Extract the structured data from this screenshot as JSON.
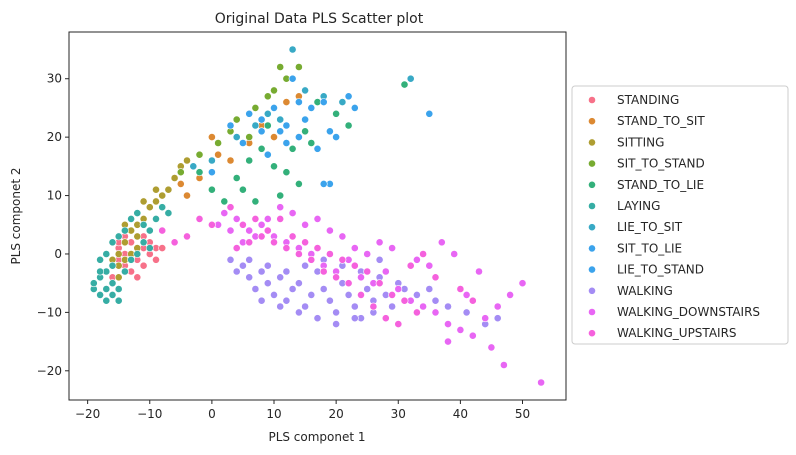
{
  "chart_data": {
    "type": "scatter",
    "title": "Original Data PLS Scatter plot",
    "xlabel": "PLS componet 1",
    "ylabel": "PLS componet 2",
    "xlim": [
      -23,
      57
    ],
    "ylim": [
      -25,
      38
    ],
    "xticks": [
      -20,
      -10,
      0,
      10,
      20,
      30,
      40,
      50
    ],
    "yticks": [
      -20,
      -10,
      0,
      10,
      20,
      30
    ],
    "grid": false,
    "legend_position": "right",
    "series": [
      {
        "name": "STANDING",
        "color": "#f77189",
        "points": [
          [
            -17,
            -3
          ],
          [
            -16,
            -1
          ],
          [
            -15,
            1
          ],
          [
            -14,
            -2
          ],
          [
            -13,
            2
          ],
          [
            -12,
            -1
          ],
          [
            -11,
            1
          ],
          [
            -10,
            0
          ],
          [
            -12,
            3
          ],
          [
            -14,
            0
          ],
          [
            -16,
            -4
          ],
          [
            -13,
            -3
          ],
          [
            -11,
            -2
          ],
          [
            -15,
            -1
          ],
          [
            -12,
            -4
          ],
          [
            -10,
            2
          ],
          [
            -9,
            1
          ],
          [
            -13,
            4
          ],
          [
            -11,
            3
          ],
          [
            -14,
            3
          ],
          [
            -9,
            -1
          ],
          [
            -8,
            1
          ],
          [
            -15,
            2
          ]
        ]
      },
      {
        "name": "STAND_TO_SIT",
        "color": "#dc8932",
        "points": [
          [
            -8,
            8
          ],
          [
            -5,
            12
          ],
          [
            -2,
            13
          ],
          [
            0,
            20
          ],
          [
            1,
            17
          ],
          [
            3,
            16
          ],
          [
            8,
            22
          ],
          [
            12,
            26
          ],
          [
            14,
            27
          ],
          [
            6,
            19
          ],
          [
            -4,
            10
          ],
          [
            10,
            20
          ]
        ]
      },
      {
        "name": "SITTING",
        "color": "#ae9d31",
        "points": [
          [
            -16,
            -1
          ],
          [
            -15,
            0
          ],
          [
            -14,
            -3
          ],
          [
            -13,
            -1
          ],
          [
            -12,
            1
          ],
          [
            -14,
            2
          ],
          [
            -15,
            -4
          ],
          [
            -13,
            4
          ],
          [
            -11,
            6
          ],
          [
            -10,
            8
          ],
          [
            -9,
            9
          ],
          [
            -8,
            10
          ],
          [
            -12,
            5
          ],
          [
            -16,
            2
          ],
          [
            -14,
            5
          ],
          [
            -11,
            9
          ],
          [
            -9,
            11
          ],
          [
            -7,
            11
          ],
          [
            -6,
            13
          ],
          [
            -5,
            15
          ],
          [
            -4,
            16
          ],
          [
            -14,
            -1
          ],
          [
            -13,
            0
          ],
          [
            -15,
            -2
          ],
          [
            -12,
            3
          ]
        ]
      },
      {
        "name": "SIT_TO_STAND",
        "color": "#77ab31",
        "points": [
          [
            -5,
            14
          ],
          [
            -2,
            17
          ],
          [
            1,
            19
          ],
          [
            4,
            23
          ],
          [
            7,
            25
          ],
          [
            9,
            27
          ],
          [
            11,
            32
          ],
          [
            12,
            30
          ],
          [
            14,
            32
          ],
          [
            3,
            21
          ],
          [
            6,
            20
          ],
          [
            10,
            28
          ]
        ]
      },
      {
        "name": "STAND_TO_LIE",
        "color": "#33b07a",
        "points": [
          [
            -2,
            14
          ],
          [
            0,
            11
          ],
          [
            2,
            9
          ],
          [
            4,
            13
          ],
          [
            6,
            16
          ],
          [
            8,
            18
          ],
          [
            10,
            15
          ],
          [
            12,
            14
          ],
          [
            14,
            12
          ],
          [
            16,
            19
          ],
          [
            20,
            24
          ],
          [
            22,
            22
          ],
          [
            18,
            27
          ],
          [
            15,
            21
          ],
          [
            13,
            18
          ],
          [
            9,
            22
          ],
          [
            5,
            11
          ],
          [
            7,
            9
          ],
          [
            11,
            10
          ],
          [
            17,
            26
          ],
          [
            31,
            29
          ]
        ]
      },
      {
        "name": "LAYING",
        "color": "#36ada4",
        "points": [
          [
            -19,
            -6
          ],
          [
            -18,
            -4
          ],
          [
            -17,
            -3
          ],
          [
            -16,
            -5
          ],
          [
            -18,
            -7
          ],
          [
            -17,
            -8
          ],
          [
            -16,
            -2
          ],
          [
            -15,
            -6
          ],
          [
            -18,
            -1
          ],
          [
            -17,
            0
          ],
          [
            -16,
            2
          ],
          [
            -15,
            3
          ],
          [
            -14,
            4
          ],
          [
            -13,
            6
          ],
          [
            -12,
            7
          ],
          [
            -11,
            5
          ],
          [
            -10,
            4
          ],
          [
            -9,
            6
          ],
          [
            -8,
            8
          ],
          [
            -7,
            7
          ],
          [
            -17,
            -6
          ],
          [
            -18,
            -3
          ],
          [
            -19,
            -5
          ],
          [
            -16,
            -7
          ],
          [
            -15,
            -8
          ],
          [
            -14,
            -3
          ],
          [
            -13,
            -1
          ],
          [
            -12,
            0
          ],
          [
            -10,
            1
          ],
          [
            -11,
            2
          ]
        ]
      },
      {
        "name": "LIE_TO_SIT",
        "color": "#38a9c5",
        "points": [
          [
            -3,
            15
          ],
          [
            0,
            16
          ],
          [
            4,
            20
          ],
          [
            9,
            24
          ],
          [
            13,
            35
          ],
          [
            15,
            28
          ],
          [
            18,
            27
          ],
          [
            7,
            22
          ],
          [
            11,
            23
          ],
          [
            32,
            30
          ],
          [
            21,
            26
          ]
        ]
      },
      {
        "name": "SIT_TO_LIE",
        "color": "#3ba3ec",
        "points": [
          [
            0,
            14
          ],
          [
            3,
            22
          ],
          [
            6,
            24
          ],
          [
            8,
            21
          ],
          [
            10,
            25
          ],
          [
            12,
            22
          ],
          [
            14,
            20
          ],
          [
            16,
            25
          ],
          [
            18,
            26
          ],
          [
            20,
            20
          ],
          [
            22,
            27
          ],
          [
            13,
            30
          ],
          [
            35,
            24
          ],
          [
            19,
            12
          ],
          [
            17,
            18
          ],
          [
            9,
            17
          ]
        ]
      },
      {
        "name": "LIE_TO_STAND",
        "color": "#3ba3ec",
        "points": [
          [
            5,
            19
          ],
          [
            11,
            21
          ],
          [
            15,
            23
          ],
          [
            19,
            21
          ],
          [
            23,
            25
          ],
          [
            14,
            26
          ],
          [
            8,
            23
          ],
          [
            12,
            19
          ],
          [
            18,
            12
          ]
        ]
      },
      {
        "name": "WALKING",
        "color": "#a48cf4",
        "points": [
          [
            3,
            -1
          ],
          [
            5,
            -2
          ],
          [
            6,
            -4
          ],
          [
            7,
            -6
          ],
          [
            8,
            -3
          ],
          [
            9,
            -5
          ],
          [
            10,
            -7
          ],
          [
            11,
            -4
          ],
          [
            12,
            -8
          ],
          [
            13,
            -6
          ],
          [
            14,
            -5
          ],
          [
            15,
            -9
          ],
          [
            16,
            -7
          ],
          [
            17,
            -3
          ],
          [
            18,
            -6
          ],
          [
            19,
            -8
          ],
          [
            20,
            -10
          ],
          [
            21,
            -5
          ],
          [
            22,
            -7
          ],
          [
            23,
            -9
          ],
          [
            24,
            -11
          ],
          [
            25,
            -6
          ],
          [
            26,
            -8
          ],
          [
            27,
            -4
          ],
          [
            28,
            -7
          ],
          [
            29,
            -9
          ],
          [
            30,
            -5
          ],
          [
            31,
            -6
          ],
          [
            32,
            -8
          ],
          [
            33,
            -7
          ],
          [
            35,
            -6
          ],
          [
            36,
            -8
          ],
          [
            38,
            -9
          ],
          [
            41,
            -10
          ],
          [
            44,
            -12
          ],
          [
            46,
            -11
          ],
          [
            4,
            -3
          ],
          [
            6,
            -1
          ],
          [
            9,
            -2
          ],
          [
            12,
            -3
          ],
          [
            15,
            -2
          ],
          [
            18,
            -1
          ],
          [
            21,
            -2
          ],
          [
            24,
            -3
          ],
          [
            27,
            -1
          ],
          [
            14,
            -10
          ],
          [
            17,
            -11
          ],
          [
            20,
            -12
          ],
          [
            23,
            -11
          ],
          [
            11,
            -9
          ],
          [
            8,
            -8
          ],
          [
            26,
            -10
          ]
        ]
      },
      {
        "name": "WALKING_DOWNSTAIRS",
        "color": "#e866f4",
        "points": [
          [
            2,
            7
          ],
          [
            4,
            6
          ],
          [
            6,
            4
          ],
          [
            8,
            5
          ],
          [
            10,
            3
          ],
          [
            12,
            2
          ],
          [
            14,
            1
          ],
          [
            16,
            0
          ],
          [
            18,
            -2
          ],
          [
            20,
            -3
          ],
          [
            22,
            -1
          ],
          [
            24,
            -4
          ],
          [
            26,
            -5
          ],
          [
            28,
            -3
          ],
          [
            30,
            -6
          ],
          [
            32,
            -8
          ],
          [
            34,
            -9
          ],
          [
            36,
            -10
          ],
          [
            38,
            -12
          ],
          [
            40,
            -13
          ],
          [
            42,
            -14
          ],
          [
            44,
            -11
          ],
          [
            46,
            -9
          ],
          [
            48,
            -7
          ],
          [
            50,
            -5
          ],
          [
            45,
            -16
          ],
          [
            47,
            -19
          ],
          [
            53,
            -22
          ],
          [
            38,
            -15
          ],
          [
            41,
            -7
          ],
          [
            43,
            -3
          ],
          [
            37,
            2
          ],
          [
            39,
            0
          ],
          [
            35,
            -2
          ],
          [
            33,
            -1
          ],
          [
            29,
            1
          ],
          [
            27,
            2
          ],
          [
            25,
            0
          ],
          [
            23,
            1
          ],
          [
            21,
            3
          ],
          [
            19,
            4
          ],
          [
            17,
            6
          ],
          [
            15,
            5
          ],
          [
            13,
            7
          ],
          [
            11,
            8
          ],
          [
            9,
            6
          ],
          [
            7,
            3
          ],
          [
            5,
            2
          ],
          [
            3,
            4
          ],
          [
            1,
            5
          ]
        ]
      },
      {
        "name": "WALKING_UPSTAIRS",
        "color": "#f561dd",
        "points": [
          [
            3,
            8
          ],
          [
            5,
            5
          ],
          [
            7,
            6
          ],
          [
            9,
            4
          ],
          [
            11,
            6
          ],
          [
            13,
            3
          ],
          [
            15,
            2
          ],
          [
            17,
            1
          ],
          [
            19,
            0
          ],
          [
            21,
            -1
          ],
          [
            23,
            -2
          ],
          [
            25,
            -3
          ],
          [
            27,
            -5
          ],
          [
            29,
            -7
          ],
          [
            31,
            -8
          ],
          [
            33,
            -10
          ],
          [
            30,
            -12
          ],
          [
            28,
            -11
          ],
          [
            26,
            -9
          ],
          [
            24,
            -7
          ],
          [
            22,
            -5
          ],
          [
            20,
            -4
          ],
          [
            18,
            -3
          ],
          [
            16,
            -1
          ],
          [
            14,
            0
          ],
          [
            12,
            1
          ],
          [
            10,
            2
          ],
          [
            8,
            3
          ],
          [
            6,
            2
          ],
          [
            4,
            1
          ],
          [
            0,
            5
          ],
          [
            -2,
            6
          ],
          [
            -4,
            3
          ],
          [
            -6,
            2
          ],
          [
            -8,
            4
          ],
          [
            36,
            -4
          ],
          [
            40,
            -6
          ],
          [
            42,
            -8
          ],
          [
            32,
            -2
          ],
          [
            34,
            0
          ]
        ]
      }
    ]
  }
}
